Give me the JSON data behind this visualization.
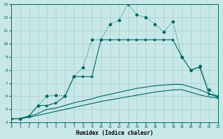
{
  "xlabel": "Humidex (Indice chaleur)",
  "bg_color": "#c8e8e8",
  "line_color": "#006666",
  "grid_color": "#a8cccc",
  "xlim": [
    0,
    23
  ],
  "ylim": [
    4,
    13
  ],
  "xticks": [
    0,
    1,
    2,
    3,
    4,
    5,
    6,
    7,
    8,
    9,
    10,
    11,
    12,
    13,
    14,
    15,
    16,
    17,
    18,
    19,
    20,
    21,
    22,
    23
  ],
  "yticks": [
    4,
    5,
    6,
    7,
    8,
    9,
    10,
    11,
    12,
    13
  ],
  "line_dotted_x": [
    0,
    1,
    2,
    3,
    4,
    5,
    6,
    7,
    8,
    9,
    10,
    11,
    12,
    13,
    14,
    15,
    16,
    17,
    18,
    19,
    20,
    21,
    22,
    23
  ],
  "line_dotted_y": [
    4.3,
    4.3,
    4.5,
    5.3,
    6.0,
    6.1,
    6.0,
    7.5,
    8.2,
    10.3,
    10.3,
    11.5,
    11.8,
    13.0,
    12.2,
    12.0,
    11.5,
    10.9,
    11.7,
    9.0,
    8.0,
    8.3,
    6.5,
    6.0
  ],
  "line_marked_x": [
    0,
    1,
    2,
    3,
    4,
    5,
    6,
    7,
    8,
    9,
    10,
    11,
    12,
    13,
    14,
    15,
    16,
    17,
    18,
    19,
    20,
    21,
    22,
    23
  ],
  "line_marked_y": [
    4.3,
    4.3,
    4.5,
    5.3,
    5.3,
    5.5,
    6.0,
    7.5,
    7.5,
    7.5,
    10.3,
    10.3,
    10.3,
    10.3,
    10.3,
    10.3,
    10.3,
    10.3,
    10.3,
    9.0,
    8.0,
    8.2,
    6.2,
    5.9
  ],
  "line_smooth1_x": [
    0,
    1,
    2,
    3,
    4,
    5,
    6,
    7,
    8,
    9,
    10,
    11,
    12,
    13,
    14,
    15,
    16,
    17,
    18,
    19,
    20,
    21,
    22,
    23
  ],
  "line_smooth1_y": [
    4.3,
    4.3,
    4.45,
    4.7,
    5.0,
    5.1,
    5.3,
    5.5,
    5.65,
    5.8,
    6.0,
    6.15,
    6.3,
    6.45,
    6.6,
    6.7,
    6.8,
    6.85,
    6.9,
    6.9,
    6.7,
    6.5,
    6.2,
    6.0
  ],
  "line_smooth2_x": [
    0,
    1,
    2,
    3,
    4,
    5,
    6,
    7,
    8,
    9,
    10,
    11,
    12,
    13,
    14,
    15,
    16,
    17,
    18,
    19,
    20,
    21,
    22,
    23
  ],
  "line_smooth2_y": [
    4.3,
    4.3,
    4.4,
    4.55,
    4.7,
    4.85,
    5.0,
    5.15,
    5.3,
    5.45,
    5.6,
    5.72,
    5.84,
    5.96,
    6.08,
    6.2,
    6.32,
    6.4,
    6.48,
    6.5,
    6.3,
    6.1,
    5.95,
    5.85
  ]
}
